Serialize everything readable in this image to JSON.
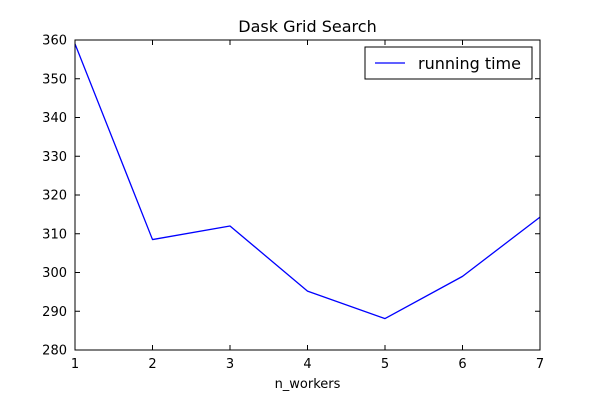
{
  "chart_data": {
    "type": "line",
    "title": "Dask Grid Search",
    "xlabel": "n_workers",
    "ylabel": "",
    "x": [
      1,
      2,
      3,
      4,
      5,
      6,
      7
    ],
    "series": [
      {
        "name": "running time",
        "color": "#0000ff",
        "values": [
          359,
          308.5,
          312,
          295.2,
          288.1,
          299,
          314.3
        ]
      }
    ],
    "xlim": [
      1,
      7
    ],
    "ylim": [
      280,
      360
    ],
    "xticks": [
      "1",
      "2",
      "3",
      "4",
      "5",
      "6",
      "7"
    ],
    "yticks": [
      "280",
      "290",
      "300",
      "310",
      "320",
      "330",
      "340",
      "350",
      "360"
    ],
    "grid": false,
    "legend_position": "top-right"
  }
}
